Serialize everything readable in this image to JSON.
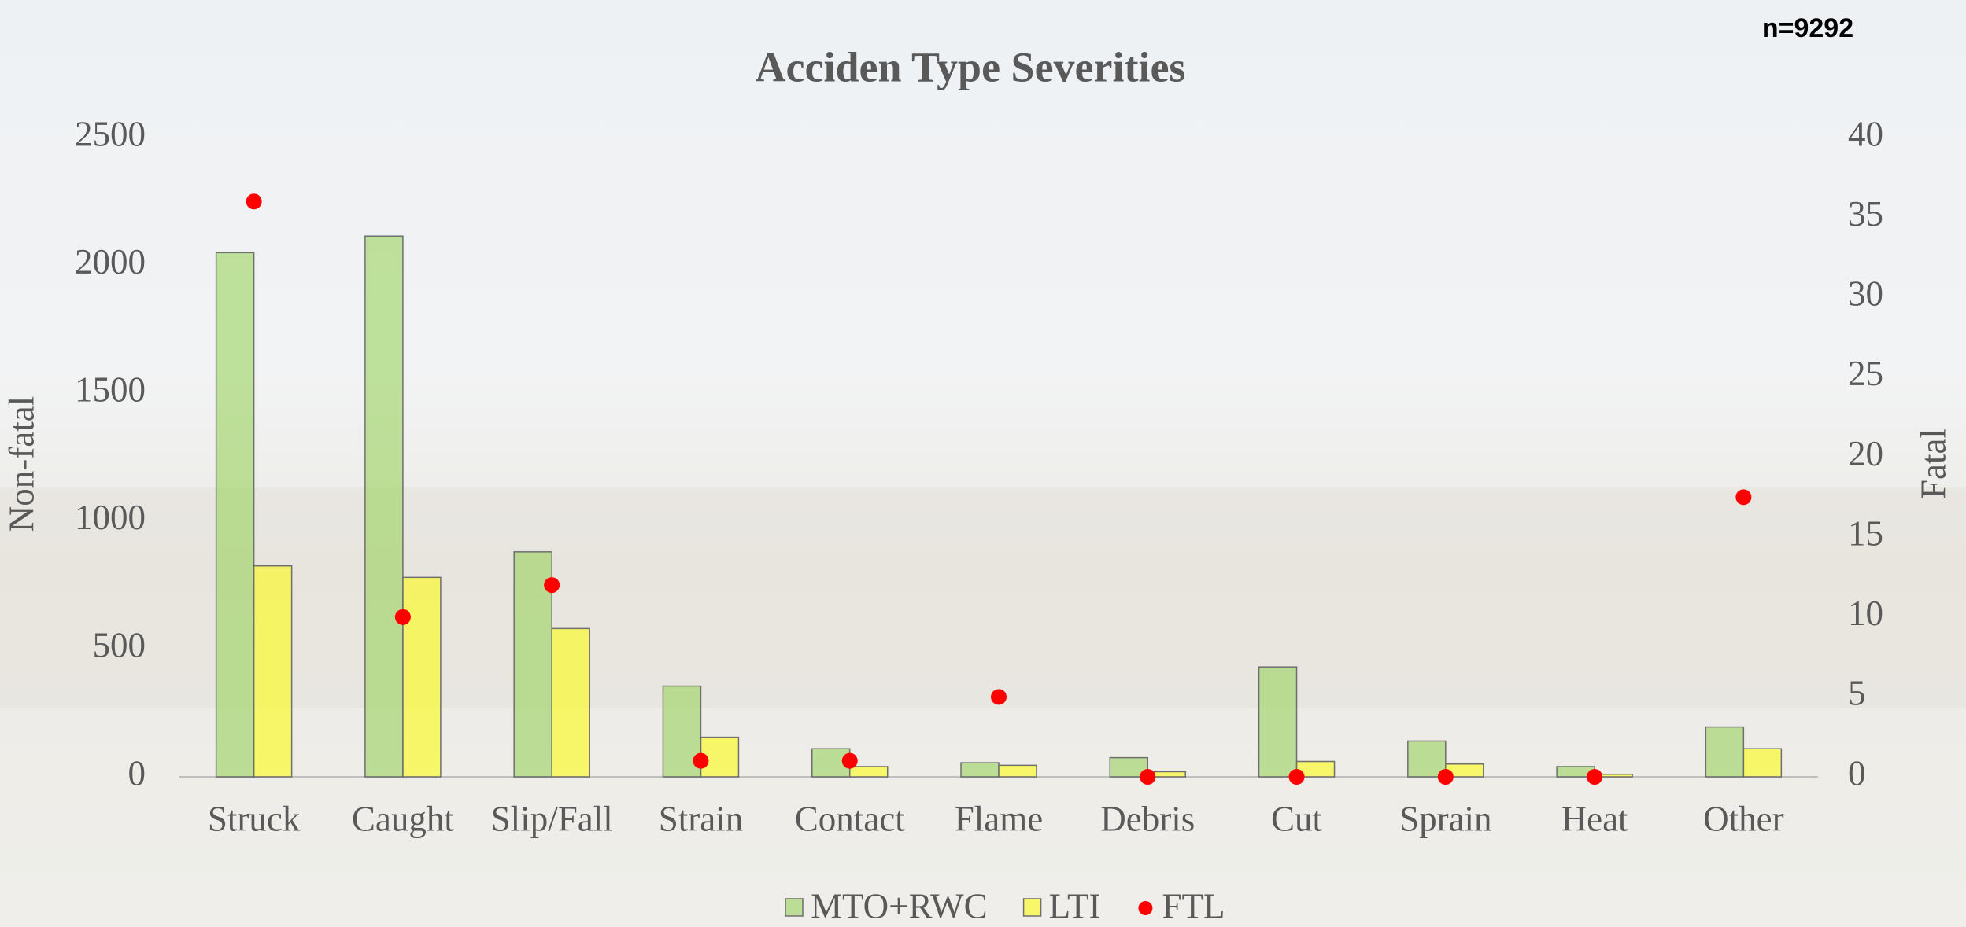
{
  "chart_data": {
    "type": "bar",
    "title": "Acciden Type Severities",
    "annotation": "n=9292",
    "y_label": "Non-fatal",
    "y2_label": "Fatal",
    "categories": [
      "Struck",
      "Caught",
      "Slip/Fall",
      "Strain",
      "Contact",
      "Flame",
      "Debris",
      "Cut",
      "Sprain",
      "Heat",
      "Other"
    ],
    "series": [
      {
        "name": "MTO+RWC",
        "color": "#92d050",
        "values": [
          2050,
          2115,
          880,
          355,
          110,
          55,
          75,
          430,
          140,
          40,
          195
        ]
      },
      {
        "name": "LTI",
        "color": "#ffff00",
        "values": [
          825,
          780,
          580,
          155,
          40,
          45,
          20,
          60,
          50,
          10,
          110
        ]
      },
      {
        "name": "FTL",
        "color": "#ff0000",
        "type": "scatter",
        "axis": "y2",
        "values": [
          36,
          10,
          12,
          1,
          1,
          5,
          0,
          0,
          0,
          0,
          17.5
        ]
      }
    ],
    "ylim": [
      0,
      2500
    ],
    "yticks": [
      0,
      500,
      1000,
      1500,
      2000,
      2500
    ],
    "y2lim": [
      0,
      40
    ],
    "y2ticks": [
      0,
      5,
      10,
      15,
      20,
      25,
      30,
      35,
      40
    ],
    "grid": false,
    "legend": "bottom"
  }
}
